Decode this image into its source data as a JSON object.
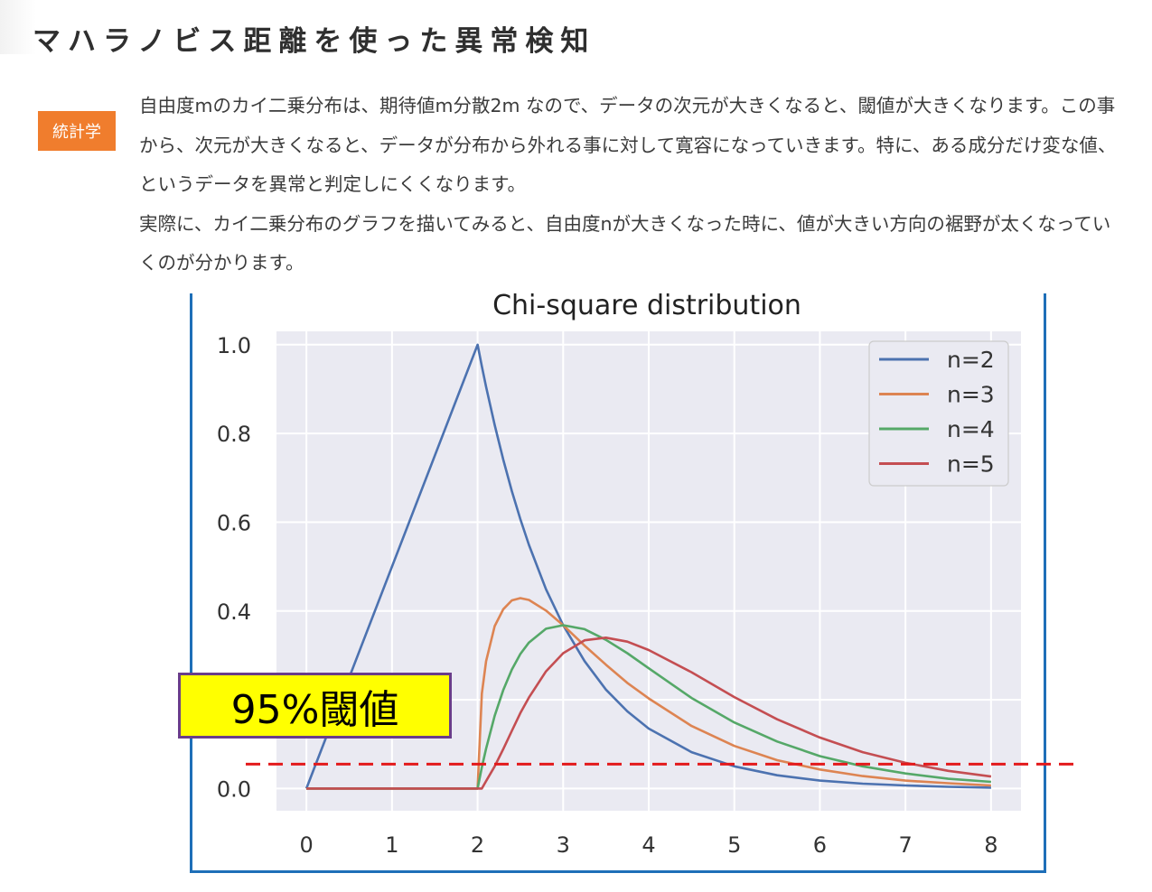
{
  "article": {
    "title": "マハラノビス距離を使った異常検知",
    "category": "統計学",
    "paragraphs": [
      "自由度mのカイ二乗分布は、期待値m分散2m なので、データの次元が大きくなると、閾値が大きくなります。この事から、次元が大きくなると、データが分布から外れる事に対して寛容になっていきます。特に、ある成分だけ変な値、というデータを異常と判定しにくくなります。",
      "実際に、カイ二乗分布のグラフを描いてみると、自由度nが大きくなった時に、値が大きい方向の裾野が太くなっていくのが分かります。"
    ]
  },
  "annotation": {
    "label": "95%閾値",
    "threshold_y": 0.055,
    "line_color": "#e31a1c",
    "box_color": "#ffff00",
    "box_border": "#6a3d8a"
  },
  "chart_data": {
    "type": "line",
    "title": "Chi-square distribution",
    "xlabel": "",
    "ylabel": "",
    "xlim": [
      -0.35,
      8.35
    ],
    "ylim": [
      -0.05,
      1.03
    ],
    "x_ticks": [
      "0",
      "1",
      "2",
      "3",
      "4",
      "5",
      "6",
      "7",
      "8"
    ],
    "y_ticks": [
      "0.0",
      "0.4",
      "0.6",
      "0.8",
      "1.0"
    ],
    "y_tick_values": [
      0.0,
      0.4,
      0.6,
      0.8,
      1.0
    ],
    "grid": true,
    "background": "#eaeaf2",
    "legend_position": "top-right",
    "x": [
      0,
      2,
      2.05,
      2.1,
      2.2,
      2.3,
      2.4,
      2.5,
      2.6,
      2.8,
      3,
      3.25,
      3.5,
      3.75,
      4,
      4.5,
      5,
      5.5,
      6,
      6.5,
      7,
      7.5,
      8
    ],
    "series": [
      {
        "name": "n=2",
        "color": "#4c72b0",
        "values": [
          0,
          1.0,
          0.951,
          0.905,
          0.819,
          0.741,
          0.67,
          0.607,
          0.549,
          0.449,
          0.368,
          0.287,
          0.223,
          0.174,
          0.135,
          0.082,
          0.05,
          0.03,
          0.018,
          0.011,
          0.007,
          0.004,
          0.002
        ]
      },
      {
        "name": "n=3",
        "color": "#dd8452",
        "values": [
          0,
          0,
          0.214,
          0.287,
          0.366,
          0.404,
          0.424,
          0.429,
          0.425,
          0.401,
          0.368,
          0.322,
          0.279,
          0.238,
          0.203,
          0.141,
          0.096,
          0.064,
          0.043,
          0.028,
          0.018,
          0.012,
          0.007
        ]
      },
      {
        "name": "n=4",
        "color": "#55a868",
        "values": [
          0,
          0,
          0.048,
          0.09,
          0.164,
          0.222,
          0.268,
          0.303,
          0.329,
          0.36,
          0.368,
          0.359,
          0.335,
          0.305,
          0.271,
          0.204,
          0.149,
          0.106,
          0.073,
          0.05,
          0.034,
          0.022,
          0.015
        ]
      },
      {
        "name": "n=5",
        "color": "#c44e52",
        "values": [
          0,
          0,
          0.0,
          0.017,
          0.05,
          0.089,
          0.13,
          0.17,
          0.205,
          0.264,
          0.305,
          0.334,
          0.34,
          0.331,
          0.312,
          0.262,
          0.206,
          0.156,
          0.115,
          0.082,
          0.058,
          0.04,
          0.027
        ]
      }
    ]
  }
}
